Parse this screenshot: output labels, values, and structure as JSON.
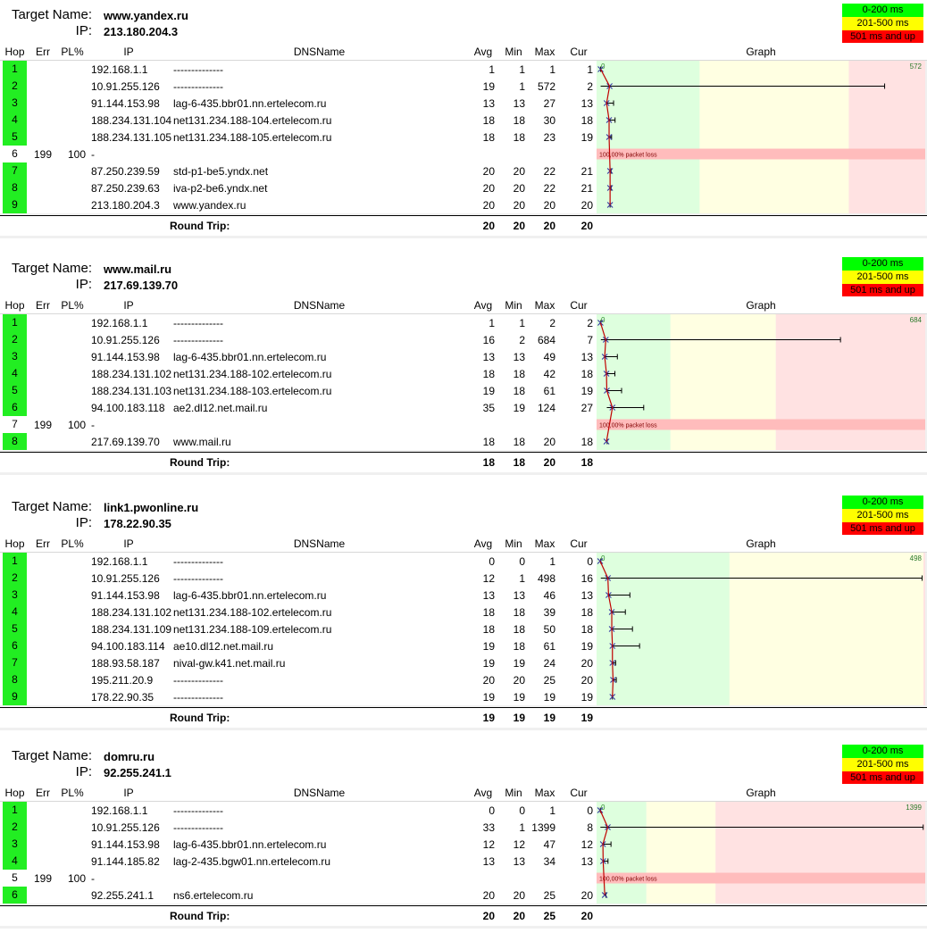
{
  "labels": {
    "target_name": "Target Name:",
    "ip": "IP:",
    "legend": [
      "0-200 ms",
      "201-500 ms",
      "501 ms and up"
    ],
    "columns": {
      "hop": "Hop",
      "err": "Err",
      "pl": "PL%",
      "ip": "IP",
      "dns": "DNSName",
      "avg": "Avg",
      "min": "Min",
      "max": "Max",
      "cur": "Cur",
      "graph": "Graph"
    },
    "round_trip": "Round Trip:",
    "packet_loss": "100,00% packet loss",
    "zero": "0"
  },
  "colors": {
    "green": "#00ff00",
    "yellow": "#ffff00",
    "red": "#ff0000",
    "zone_green": "#deffde",
    "zone_yellow": "#ffffe2",
    "zone_red": "#ffe2e2",
    "loss": "#ffbcbc"
  },
  "traces": [
    {
      "target": "www.yandex.ru",
      "ip": "213.180.204.3",
      "max_label": "572",
      "scale_max": 650,
      "hops": [
        {
          "hop": "1",
          "err": "",
          "pl": "",
          "ip": "192.168.1.1",
          "dns": "--------------",
          "avg": "1",
          "min": "1",
          "max": "1",
          "cur": "1",
          "loss": false
        },
        {
          "hop": "2",
          "err": "",
          "pl": "",
          "ip": "10.91.255.126",
          "dns": "--------------",
          "avg": "19",
          "min": "1",
          "max": "572",
          "cur": "2",
          "loss": false
        },
        {
          "hop": "3",
          "err": "",
          "pl": "",
          "ip": "91.144.153.98",
          "dns": "lag-6-435.bbr01.nn.ertelecom.ru",
          "avg": "13",
          "min": "13",
          "max": "27",
          "cur": "13",
          "loss": false
        },
        {
          "hop": "4",
          "err": "",
          "pl": "",
          "ip": "188.234.131.104",
          "dns": "net131.234.188-104.ertelecom.ru",
          "avg": "18",
          "min": "18",
          "max": "30",
          "cur": "18",
          "loss": false
        },
        {
          "hop": "5",
          "err": "",
          "pl": "",
          "ip": "188.234.131.105",
          "dns": "net131.234.188-105.ertelecom.ru",
          "avg": "18",
          "min": "18",
          "max": "23",
          "cur": "19",
          "loss": false
        },
        {
          "hop": "6",
          "err": "199",
          "pl": "100",
          "ip": "-",
          "dns": "",
          "avg": "",
          "min": "",
          "max": "",
          "cur": "",
          "loss": true
        },
        {
          "hop": "7",
          "err": "",
          "pl": "",
          "ip": "87.250.239.59",
          "dns": "std-p1-be5.yndx.net",
          "avg": "20",
          "min": "20",
          "max": "22",
          "cur": "21",
          "loss": false
        },
        {
          "hop": "8",
          "err": "",
          "pl": "",
          "ip": "87.250.239.63",
          "dns": "iva-p2-be6.yndx.net",
          "avg": "20",
          "min": "20",
          "max": "22",
          "cur": "21",
          "loss": false
        },
        {
          "hop": "9",
          "err": "",
          "pl": "",
          "ip": "213.180.204.3",
          "dns": "www.yandex.ru",
          "avg": "20",
          "min": "20",
          "max": "20",
          "cur": "20",
          "loss": false
        }
      ],
      "round_trip": {
        "avg": "20",
        "min": "20",
        "max": "20",
        "cur": "20"
      }
    },
    {
      "target": "www.mail.ru",
      "ip": "217.69.139.70",
      "max_label": "684",
      "scale_max": 920,
      "hops": [
        {
          "hop": "1",
          "err": "",
          "pl": "",
          "ip": "192.168.1.1",
          "dns": "--------------",
          "avg": "1",
          "min": "1",
          "max": "2",
          "cur": "2",
          "loss": false
        },
        {
          "hop": "2",
          "err": "",
          "pl": "",
          "ip": "10.91.255.126",
          "dns": "--------------",
          "avg": "16",
          "min": "2",
          "max": "684",
          "cur": "7",
          "loss": false
        },
        {
          "hop": "3",
          "err": "",
          "pl": "",
          "ip": "91.144.153.98",
          "dns": "lag-6-435.bbr01.nn.ertelecom.ru",
          "avg": "13",
          "min": "13",
          "max": "49",
          "cur": "13",
          "loss": false
        },
        {
          "hop": "4",
          "err": "",
          "pl": "",
          "ip": "188.234.131.102",
          "dns": "net131.234.188-102.ertelecom.ru",
          "avg": "18",
          "min": "18",
          "max": "42",
          "cur": "18",
          "loss": false
        },
        {
          "hop": "5",
          "err": "",
          "pl": "",
          "ip": "188.234.131.103",
          "dns": "net131.234.188-103.ertelecom.ru",
          "avg": "19",
          "min": "18",
          "max": "61",
          "cur": "19",
          "loss": false
        },
        {
          "hop": "6",
          "err": "",
          "pl": "",
          "ip": "94.100.183.118",
          "dns": "ae2.dl12.net.mail.ru",
          "avg": "35",
          "min": "19",
          "max": "124",
          "cur": "27",
          "loss": false
        },
        {
          "hop": "7",
          "err": "199",
          "pl": "100",
          "ip": "-",
          "dns": "",
          "avg": "",
          "min": "",
          "max": "",
          "cur": "",
          "loss": true
        },
        {
          "hop": "8",
          "err": "",
          "pl": "",
          "ip": "217.69.139.70",
          "dns": "www.mail.ru",
          "avg": "18",
          "min": "18",
          "max": "20",
          "cur": "18",
          "loss": false
        }
      ],
      "round_trip": {
        "avg": "18",
        "min": "18",
        "max": "20",
        "cur": "18"
      }
    },
    {
      "target": "link1.pwonline.ru",
      "ip": "178.22.90.35",
      "max_label": "498",
      "scale_max": 500,
      "hops": [
        {
          "hop": "1",
          "err": "",
          "pl": "",
          "ip": "192.168.1.1",
          "dns": "--------------",
          "avg": "0",
          "min": "0",
          "max": "1",
          "cur": "0",
          "loss": false
        },
        {
          "hop": "2",
          "err": "",
          "pl": "",
          "ip": "10.91.255.126",
          "dns": "--------------",
          "avg": "12",
          "min": "1",
          "max": "498",
          "cur": "16",
          "loss": false
        },
        {
          "hop": "3",
          "err": "",
          "pl": "",
          "ip": "91.144.153.98",
          "dns": "lag-6-435.bbr01.nn.ertelecom.ru",
          "avg": "13",
          "min": "13",
          "max": "46",
          "cur": "13",
          "loss": false
        },
        {
          "hop": "4",
          "err": "",
          "pl": "",
          "ip": "188.234.131.102",
          "dns": "net131.234.188-102.ertelecom.ru",
          "avg": "18",
          "min": "18",
          "max": "39",
          "cur": "18",
          "loss": false
        },
        {
          "hop": "5",
          "err": "",
          "pl": "",
          "ip": "188.234.131.109",
          "dns": "net131.234.188-109.ertelecom.ru",
          "avg": "18",
          "min": "18",
          "max": "50",
          "cur": "18",
          "loss": false
        },
        {
          "hop": "6",
          "err": "",
          "pl": "",
          "ip": "94.100.183.114",
          "dns": "ae10.dl12.net.mail.ru",
          "avg": "19",
          "min": "18",
          "max": "61",
          "cur": "19",
          "loss": false
        },
        {
          "hop": "7",
          "err": "",
          "pl": "",
          "ip": "188.93.58.187",
          "dns": "nival-gw.k41.net.mail.ru",
          "avg": "19",
          "min": "19",
          "max": "24",
          "cur": "20",
          "loss": false
        },
        {
          "hop": "8",
          "err": "",
          "pl": "",
          "ip": "195.211.20.9",
          "dns": "--------------",
          "avg": "20",
          "min": "20",
          "max": "25",
          "cur": "20",
          "loss": false
        },
        {
          "hop": "9",
          "err": "",
          "pl": "",
          "ip": "178.22.90.35",
          "dns": "--------------",
          "avg": "19",
          "min": "19",
          "max": "19",
          "cur": "19",
          "loss": false
        }
      ],
      "round_trip": {
        "avg": "19",
        "min": "19",
        "max": "19",
        "cur": "19"
      }
    },
    {
      "target": "domru.ru",
      "ip": "92.255.241.1",
      "max_label": "1399",
      "scale_max": 1400,
      "hops": [
        {
          "hop": "1",
          "err": "",
          "pl": "",
          "ip": "192.168.1.1",
          "dns": "--------------",
          "avg": "0",
          "min": "0",
          "max": "1",
          "cur": "0",
          "loss": false
        },
        {
          "hop": "2",
          "err": "",
          "pl": "",
          "ip": "10.91.255.126",
          "dns": "--------------",
          "avg": "33",
          "min": "1",
          "max": "1399",
          "cur": "8",
          "loss": false
        },
        {
          "hop": "3",
          "err": "",
          "pl": "",
          "ip": "91.144.153.98",
          "dns": "lag-6-435.bbr01.nn.ertelecom.ru",
          "avg": "12",
          "min": "12",
          "max": "47",
          "cur": "12",
          "loss": false
        },
        {
          "hop": "4",
          "err": "",
          "pl": "",
          "ip": "91.144.185.82",
          "dns": "lag-2-435.bgw01.nn.ertelecom.ru",
          "avg": "13",
          "min": "13",
          "max": "34",
          "cur": "13",
          "loss": false
        },
        {
          "hop": "5",
          "err": "199",
          "pl": "100",
          "ip": "-",
          "dns": "",
          "avg": "",
          "min": "",
          "max": "",
          "cur": "",
          "loss": true
        },
        {
          "hop": "6",
          "err": "",
          "pl": "",
          "ip": "92.255.241.1",
          "dns": "ns6.ertelecom.ru",
          "avg": "20",
          "min": "20",
          "max": "25",
          "cur": "20",
          "loss": false
        }
      ],
      "round_trip": {
        "avg": "20",
        "min": "20",
        "max": "25",
        "cur": "20"
      }
    }
  ]
}
